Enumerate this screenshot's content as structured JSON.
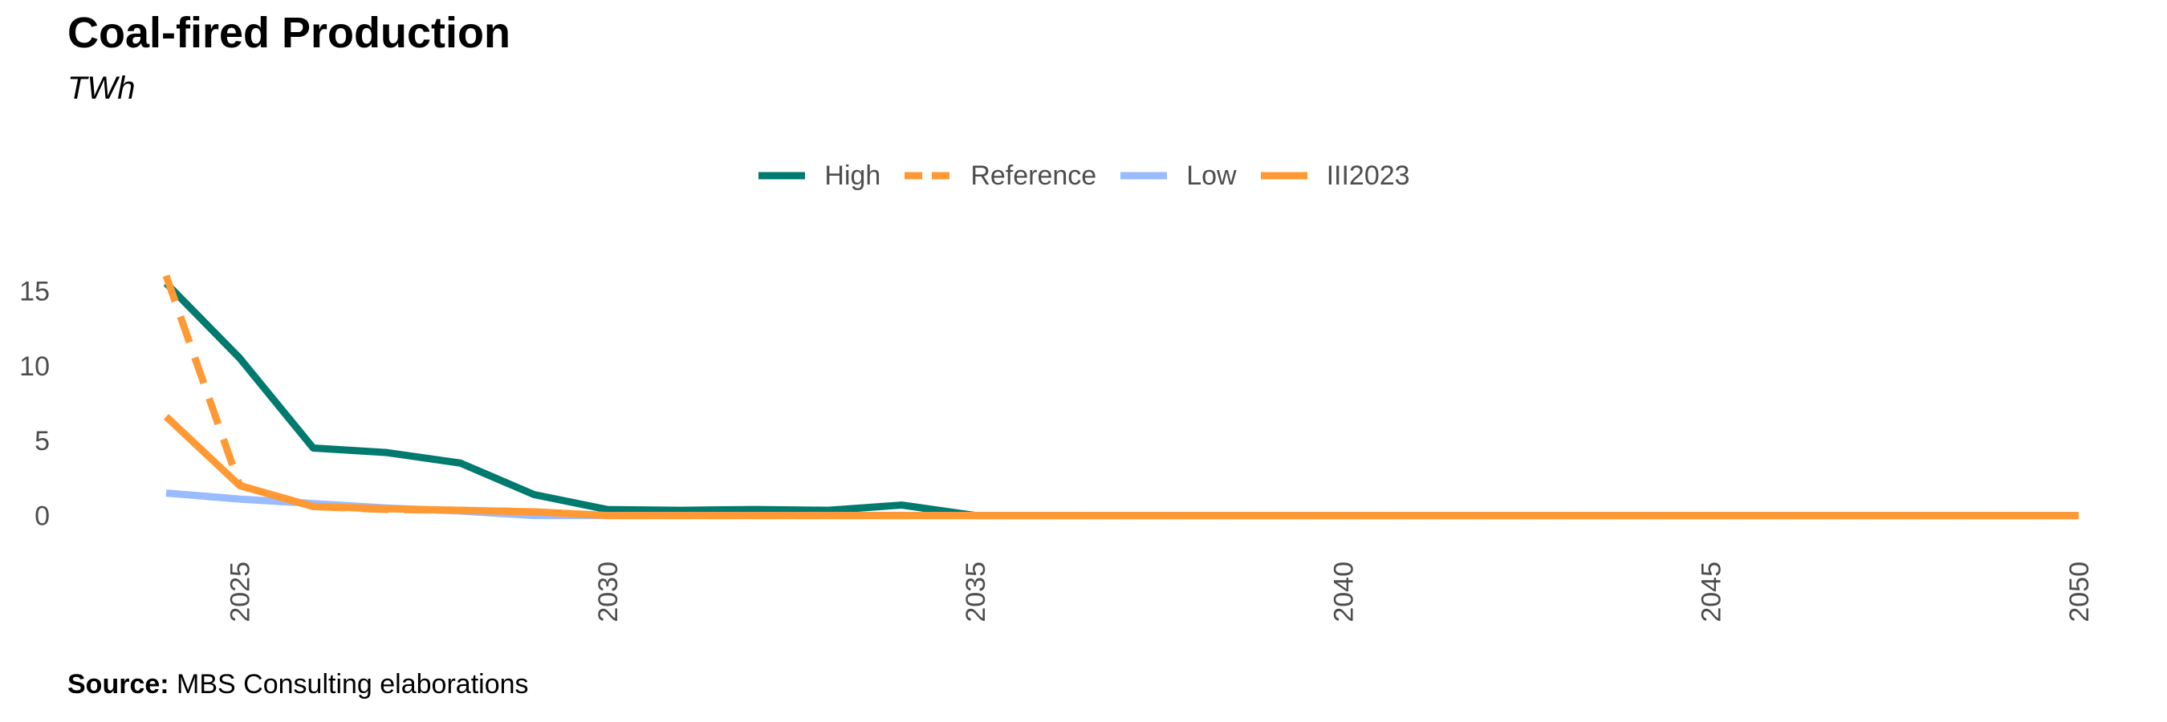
{
  "title": "Coal-fired Production",
  "subtitle": "TWh",
  "source": {
    "label": "Source:",
    "text": "MBS Consulting elaborations"
  },
  "chart_data": {
    "type": "line",
    "title": "Coal-fired Production",
    "subtitle": "TWh",
    "xlabel": "",
    "ylabel": "",
    "xlim": [
      2024,
      2050
    ],
    "ylim": [
      -2,
      17
    ],
    "x_ticks": [
      2025,
      2030,
      2035,
      2040,
      2045,
      2050
    ],
    "y_ticks": [
      0,
      5,
      10,
      15
    ],
    "grid": false,
    "legend_position": "top",
    "series": [
      {
        "name": "High",
        "color": "#007A6E",
        "dash": "solid",
        "x": [
          2024,
          2025,
          2026,
          2027,
          2028,
          2029,
          2030,
          2031,
          2032,
          2033,
          2034,
          2035,
          2036,
          2037,
          2038,
          2039,
          2040,
          2041,
          2042,
          2043,
          2044,
          2045,
          2046,
          2047,
          2048,
          2049,
          2050
        ],
        "y": [
          15.5,
          10.5,
          4.5,
          4.2,
          3.5,
          1.4,
          0.4,
          0.35,
          0.4,
          0.35,
          0.7,
          0,
          0,
          0,
          0,
          0,
          0,
          0,
          0,
          0,
          0,
          0,
          0,
          0,
          0,
          0,
          0
        ]
      },
      {
        "name": "Reference",
        "color": "#FF9933",
        "dash": "dashed",
        "x": [
          2024,
          2025,
          2026,
          2027,
          2028,
          2029,
          2030,
          2031,
          2032,
          2033,
          2034,
          2035,
          2036,
          2037,
          2038,
          2039,
          2040,
          2041,
          2042,
          2043,
          2044,
          2045,
          2046,
          2047,
          2048,
          2049,
          2050
        ],
        "y": [
          16.0,
          2.0,
          0.6,
          0.4,
          0.35,
          0.25,
          0,
          0,
          0,
          0,
          0,
          0,
          0,
          0,
          0,
          0,
          0,
          0,
          0,
          0,
          0,
          0,
          0,
          0,
          0,
          0,
          0
        ]
      },
      {
        "name": "Low",
        "color": "#99BBFF",
        "dash": "solid",
        "x": [
          2024,
          2025,
          2026,
          2027,
          2028,
          2029,
          2030,
          2031,
          2032,
          2033,
          2034,
          2035,
          2036,
          2037,
          2038,
          2039,
          2040,
          2041,
          2042,
          2043,
          2044,
          2045,
          2046,
          2047,
          2048,
          2049,
          2050
        ],
        "y": [
          1.5,
          1.1,
          0.8,
          0.5,
          0.3,
          0,
          0,
          0,
          0,
          0,
          0,
          0,
          0,
          0,
          0,
          0,
          0,
          0,
          0,
          0,
          0,
          0,
          0,
          0,
          0,
          0,
          0
        ]
      },
      {
        "name": "III2023",
        "color": "#FF9933",
        "dash": "solid",
        "x": [
          2024,
          2025,
          2026,
          2027,
          2028,
          2029,
          2030,
          2031,
          2032,
          2033,
          2034,
          2035,
          2036,
          2037,
          2038,
          2039,
          2040,
          2041,
          2042,
          2043,
          2044,
          2045,
          2046,
          2047,
          2048,
          2049,
          2050
        ],
        "y": [
          6.6,
          2.0,
          0.6,
          0.45,
          0.35,
          0.25,
          0,
          0,
          0,
          0,
          0,
          0,
          0,
          0,
          0,
          0,
          0,
          0,
          0,
          0,
          0,
          0,
          0,
          0,
          0,
          0,
          0
        ]
      }
    ]
  }
}
